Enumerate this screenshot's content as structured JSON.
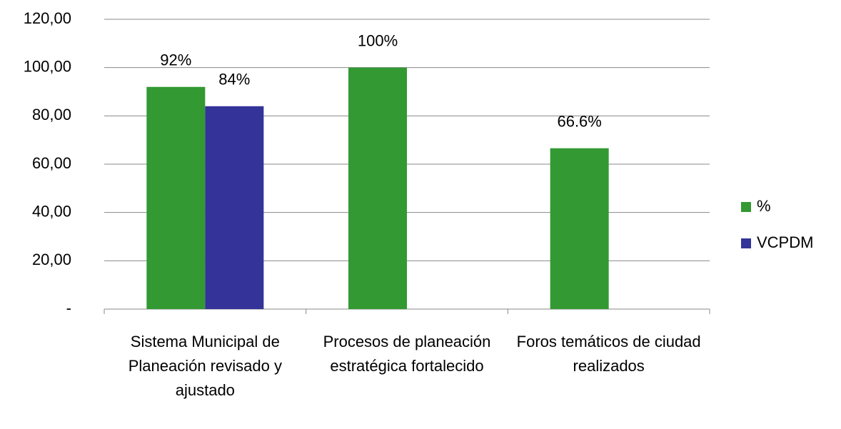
{
  "chart_data": {
    "type": "bar",
    "categories": [
      "Sistema Municipal de Planeación revisado y ajustado",
      "Procesos de planeación estratégica fortalecido",
      "Foros temáticos de ciudad realizados"
    ],
    "series": [
      {
        "name": "%",
        "color": "#339933",
        "values": [
          92,
          100,
          66.6
        ],
        "value_labels": [
          "92%",
          "100%",
          "66.6%"
        ]
      },
      {
        "name": "VCPDM",
        "color": "#333399",
        "values": [
          84,
          null,
          null
        ],
        "value_labels": [
          "84%",
          null,
          null
        ]
      }
    ],
    "ylim": [
      0,
      120
    ],
    "yticks": [
      {
        "value": 0,
        "label": "-"
      },
      {
        "value": 20,
        "label": "20,00"
      },
      {
        "value": 40,
        "label": "40,00"
      },
      {
        "value": 60,
        "label": "60,00"
      },
      {
        "value": 80,
        "label": "80,00"
      },
      {
        "value": 100,
        "label": "100,00"
      },
      {
        "value": 120,
        "label": "120,00"
      }
    ],
    "grid": true,
    "legend": "right"
  }
}
